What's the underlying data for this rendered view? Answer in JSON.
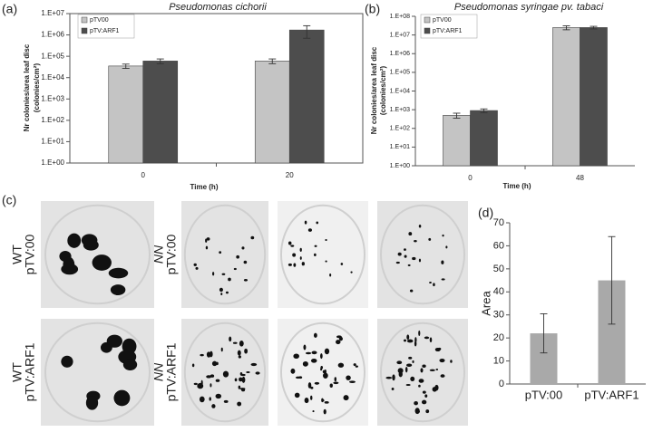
{
  "chart_data": [
    {
      "type": "bar",
      "label": "(a)",
      "title": "Pseudomonas cichorii",
      "ylabel": [
        "Nr colonies/area leaf disc",
        "(colonies/cm²)"
      ],
      "xlabel": "Time (h)",
      "categories": [
        "0",
        "20"
      ],
      "series": [
        {
          "name": "pTV00",
          "color": "#c4c4c4",
          "values": [
            35000,
            60000
          ],
          "errors": [
            8000,
            15000
          ]
        },
        {
          "name": "pTV:ARF1",
          "color": "#4d4d4d",
          "values": [
            60000,
            1700000
          ],
          "errors": [
            15000,
            1000000
          ]
        }
      ],
      "ylim": [
        1,
        10000000
      ],
      "log_scale": true,
      "legend": "upper left",
      "yticks": [
        {
          "value": 1,
          "label": "1.E+00"
        },
        {
          "value": 10,
          "label": "1.E+01"
        },
        {
          "value": 100,
          "label": "1.E+02"
        },
        {
          "value": 1000,
          "label": "1.E+03"
        },
        {
          "value": 10000,
          "label": "1.E+04"
        },
        {
          "value": 100000,
          "label": "1.E+05"
        },
        {
          "value": 1000000,
          "label": "1.E+06"
        },
        {
          "value": 10000000,
          "label": "1.E+07"
        }
      ]
    },
    {
      "type": "bar",
      "label": "(b)",
      "title": "Pseudomonas syringae pv. tabaci",
      "ylabel": [
        "Nr colonies/area leaf disc",
        "(colonies/cm²)"
      ],
      "xlabel": "Time (h)",
      "categories": [
        "0",
        "48"
      ],
      "series": [
        {
          "name": "pTV00",
          "color": "#c4c4c4",
          "values": [
            500,
            25000000
          ],
          "errors": [
            150,
            6000000
          ]
        },
        {
          "name": "pTV:ARF1",
          "color": "#4d4d4d",
          "values": [
            900,
            25000000
          ],
          "errors": [
            200,
            4000000
          ]
        }
      ],
      "ylim": [
        1,
        100000000
      ],
      "log_scale": true,
      "legend": "upper left",
      "yticks": [
        {
          "value": 1,
          "label": "1.E+00"
        },
        {
          "value": 10,
          "label": "1.E+01"
        },
        {
          "value": 100,
          "label": "1.E+02"
        },
        {
          "value": 1000,
          "label": "1.E+03"
        },
        {
          "value": 10000,
          "label": "1.E+04"
        },
        {
          "value": 100000,
          "label": "1.E+05"
        },
        {
          "value": 1000000,
          "label": "1.E+06"
        },
        {
          "value": 10000000,
          "label": "1.E+07"
        },
        {
          "value": 100000000,
          "label": "1.E+08"
        }
      ]
    },
    {
      "type": "bar",
      "label": "(d)",
      "ylabel": [
        "Area"
      ],
      "categories": [
        "pTV:00",
        "pTV:ARF1"
      ],
      "series": [
        {
          "color": "#a9a9a9",
          "values": [
            22,
            45
          ],
          "errors": [
            8.5,
            19
          ]
        }
      ],
      "ylim": [
        0,
        70
      ],
      "log_scale": false,
      "yticks": [
        0,
        10,
        20,
        30,
        40,
        50,
        60,
        70
      ]
    }
  ],
  "panel_c": {
    "label": "(c)",
    "rows": [
      {
        "wt": [
          "WT",
          "pTV:00"
        ],
        "nn": [
          "NN",
          "pTV:00"
        ]
      },
      {
        "wt": [
          "WT",
          "pTV:ARF1"
        ],
        "nn": [
          "NN",
          "pTV:ARF1"
        ]
      }
    ]
  }
}
